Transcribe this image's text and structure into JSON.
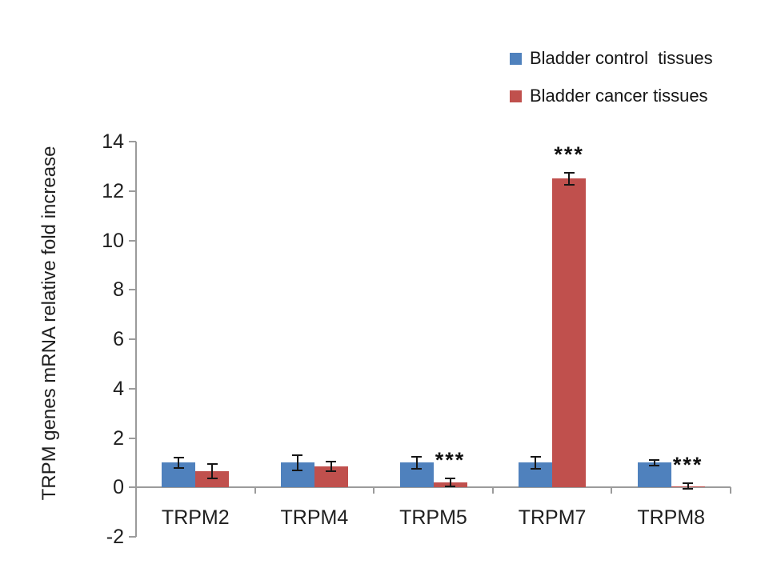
{
  "chart_data": {
    "type": "bar",
    "title": "",
    "categories": [
      "TRPM2",
      "TRPM4",
      "TRPM5",
      "TRPM7",
      "TRPM8"
    ],
    "series": [
      {
        "name": "Bladder control  tissues",
        "color": "#4F81BD",
        "values": [
          1.0,
          1.0,
          1.0,
          1.0,
          1.0
        ],
        "errors": [
          0.2,
          0.3,
          0.25,
          0.25,
          0.12
        ]
      },
      {
        "name": "Bladder cancer tissues",
        "color": "#C0504D",
        "values": [
          0.65,
          0.85,
          0.2,
          12.5,
          0.05
        ],
        "errors": [
          0.3,
          0.2,
          0.15,
          0.25,
          0.12
        ]
      }
    ],
    "xlabel": "",
    "ylabel": "TRPM genes mRNA relative fold increase",
    "ylim": [
      -2,
      14
    ],
    "yticks": [
      14,
      12,
      10,
      8,
      6,
      4,
      2,
      0,
      -2
    ],
    "grid": false,
    "legend_position": "top-right",
    "annotations": [
      {
        "category_index": 2,
        "series_index": 1,
        "label": "***"
      },
      {
        "category_index": 3,
        "series_index": 1,
        "label": "***"
      },
      {
        "category_index": 4,
        "series_index": 1,
        "label": "***"
      }
    ]
  }
}
